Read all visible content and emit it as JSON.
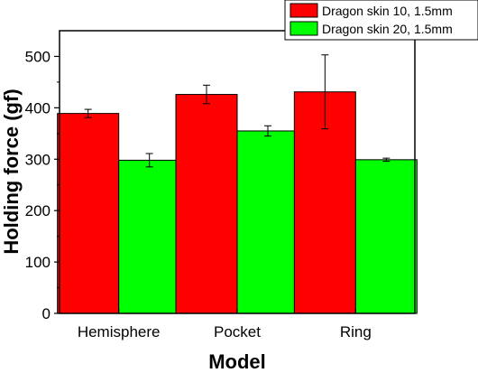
{
  "chart_data": {
    "type": "bar",
    "title": "",
    "xlabel": "Model",
    "ylabel": "Holding force (gf)",
    "categories": [
      "Hemisphere",
      "Pocket",
      "Ring"
    ],
    "series": [
      {
        "name": "Dragon skin 10, 1.5mm",
        "color": "#ff0000",
        "values": [
          389,
          426,
          431
        ],
        "errors": [
          8,
          18,
          72
        ]
      },
      {
        "name": "Dragon skin 20, 1.5mm",
        "color": "#00ff00",
        "values": [
          298,
          355,
          299
        ],
        "errors": [
          13,
          10,
          3
        ]
      }
    ],
    "ylim": [
      0,
      550
    ],
    "yticks": [
      0,
      100,
      200,
      300,
      400,
      500
    ],
    "grid": false,
    "legend_position": "top-right"
  }
}
